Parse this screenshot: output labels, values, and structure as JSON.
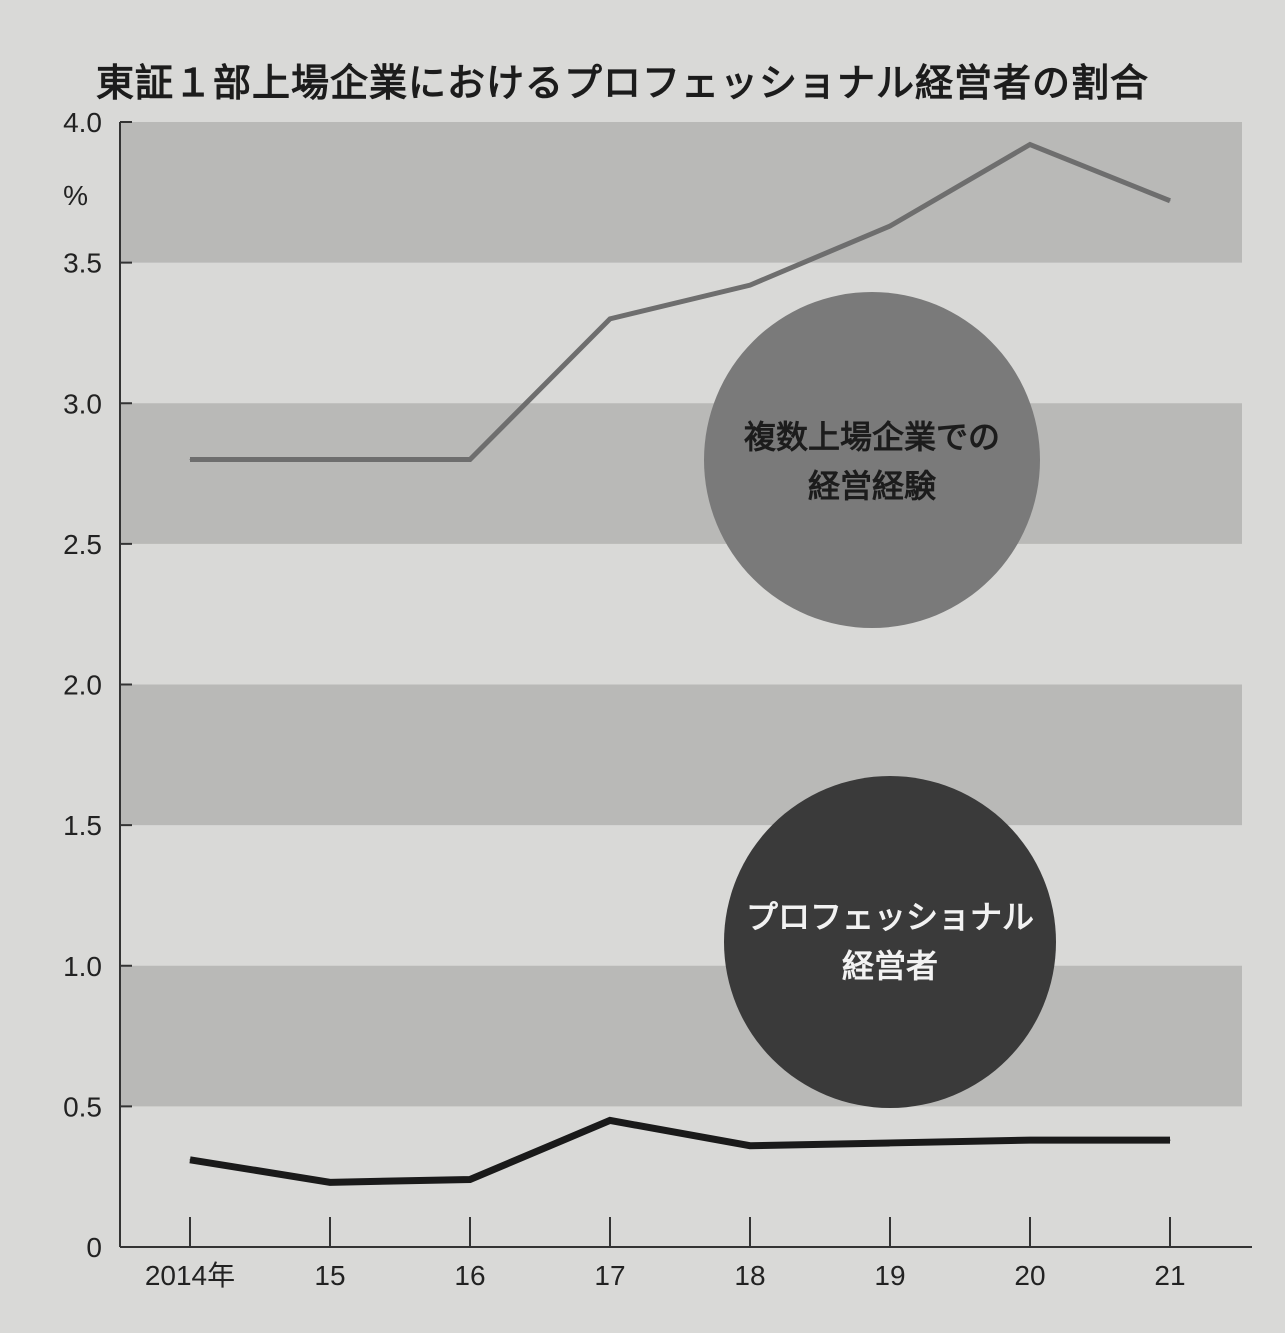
{
  "title": "東証１部上場企業におけるプロフェッショナル経営者の割合",
  "chart_data": {
    "type": "line",
    "title": "東証１部上場企業におけるプロフェッショナル経営者の割合",
    "xlabel": "",
    "ylabel": "",
    "y_unit": "%",
    "x": [
      "2014年",
      "15",
      "16",
      "17",
      "18",
      "19",
      "20",
      "21"
    ],
    "ylim": [
      0,
      4.0
    ],
    "y_ticks": [
      "0",
      "0.5",
      "1.0",
      "1.5",
      "2.0",
      "2.5",
      "3.0",
      "3.5",
      "4.0"
    ],
    "grid": "alternating horizontal bands",
    "series": [
      {
        "name": "複数上場企業での経営経験",
        "values": [
          2.8,
          2.8,
          2.8,
          3.3,
          3.42,
          3.63,
          3.92,
          3.72
        ],
        "color": "#6e6e6e"
      },
      {
        "name": "プロフェッショナル経営者",
        "values": [
          0.31,
          0.23,
          0.24,
          0.45,
          0.36,
          0.37,
          0.38,
          0.38
        ],
        "color": "#1a1a1a"
      }
    ],
    "labels": [
      {
        "series": 0,
        "lines": [
          "複数上場企業での",
          "経営経験"
        ],
        "fill": "#7a7a7a",
        "text_color": "#1c1c1c"
      },
      {
        "series": 1,
        "lines": [
          "プロフェッショナル",
          "経営者"
        ],
        "fill": "#3a3a3a",
        "text_color": "#f2f2f2"
      }
    ]
  }
}
